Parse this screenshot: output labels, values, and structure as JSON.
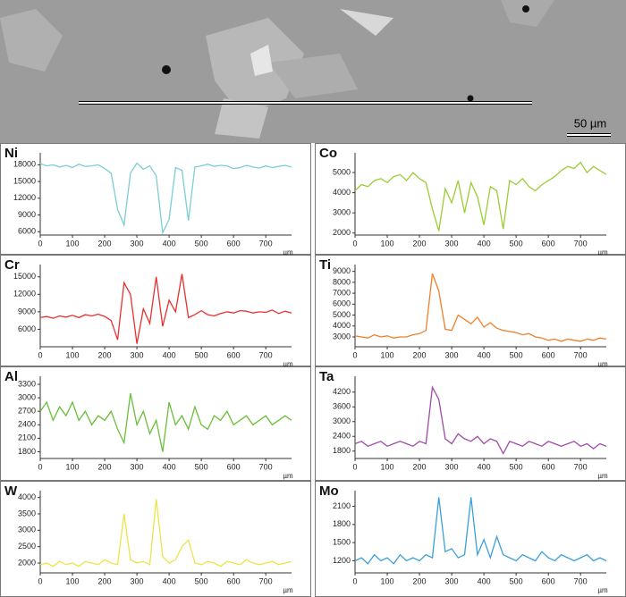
{
  "image": {
    "scale_bar": "50 µm"
  },
  "chart_data": [
    {
      "type": "line",
      "title": "Ni",
      "xlabel": "µm",
      "xlim": [
        0,
        780
      ],
      "xticks": [
        0,
        100,
        200,
        300,
        400,
        500,
        600,
        700
      ],
      "ylim": [
        5400,
        19500
      ],
      "yticks": [
        6000,
        9000,
        12000,
        15000,
        18000
      ],
      "x": [
        0,
        20,
        40,
        60,
        80,
        100,
        120,
        140,
        160,
        180,
        200,
        220,
        240,
        260,
        280,
        300,
        320,
        340,
        360,
        380,
        400,
        420,
        440,
        460,
        480,
        500,
        520,
        540,
        560,
        580,
        600,
        620,
        640,
        660,
        680,
        700,
        720,
        740,
        760,
        780
      ],
      "series": [
        {
          "name": "Ni",
          "color": "#7ccdd6",
          "values": [
            18200,
            17800,
            18000,
            17600,
            17900,
            17500,
            18100,
            17700,
            17800,
            18000,
            17300,
            16500,
            10000,
            7200,
            16500,
            18300,
            17200,
            17800,
            16000,
            5800,
            8200,
            17500,
            17000,
            8000,
            17600,
            17800,
            18100,
            17700,
            17900,
            17800,
            17300,
            17500,
            17900,
            17600,
            17400,
            17800,
            17500,
            17700,
            17900,
            17600
          ]
        }
      ]
    },
    {
      "type": "line",
      "title": "Co",
      "xlabel": "µm",
      "xlim": [
        0,
        780
      ],
      "xticks": [
        0,
        100,
        200,
        300,
        400,
        500,
        600,
        700
      ],
      "ylim": [
        1900,
        5800
      ],
      "yticks": [
        2000,
        3000,
        4000,
        5000
      ],
      "x": [
        0,
        20,
        40,
        60,
        80,
        100,
        120,
        140,
        160,
        180,
        200,
        220,
        240,
        260,
        280,
        300,
        320,
        340,
        360,
        380,
        400,
        420,
        440,
        460,
        480,
        500,
        520,
        540,
        560,
        580,
        600,
        620,
        640,
        660,
        680,
        700,
        720,
        740,
        760,
        780
      ],
      "series": [
        {
          "name": "Co",
          "color": "#9acd32",
          "values": [
            4100,
            4400,
            4300,
            4600,
            4700,
            4500,
            4800,
            4900,
            4600,
            5000,
            4700,
            4500,
            3200,
            2100,
            4200,
            3500,
            4600,
            3000,
            4500,
            3800,
            2400,
            4300,
            4100,
            2200,
            4600,
            4400,
            4700,
            4300,
            4100,
            4400,
            4600,
            4800,
            5100,
            5300,
            5200,
            5500,
            5000,
            5300,
            5100,
            4900
          ]
        }
      ]
    },
    {
      "type": "line",
      "title": "Cr",
      "xlabel": "µm",
      "xlim": [
        0,
        780
      ],
      "xticks": [
        0,
        100,
        200,
        300,
        400,
        500,
        600,
        700
      ],
      "ylim": [
        3000,
        16500
      ],
      "yticks": [
        6000,
        9000,
        12000,
        15000
      ],
      "x": [
        0,
        20,
        40,
        60,
        80,
        100,
        120,
        140,
        160,
        180,
        200,
        220,
        240,
        260,
        280,
        300,
        320,
        340,
        360,
        380,
        400,
        420,
        440,
        460,
        480,
        500,
        520,
        540,
        560,
        580,
        600,
        620,
        640,
        660,
        680,
        700,
        720,
        740,
        760,
        780
      ],
      "series": [
        {
          "name": "Cr",
          "color": "#e8312e",
          "values": [
            8000,
            8200,
            7900,
            8300,
            8100,
            8400,
            8000,
            8500,
            8300,
            8600,
            8200,
            7500,
            4200,
            14000,
            12000,
            3500,
            9500,
            7000,
            15000,
            6500,
            11000,
            9000,
            15500,
            8000,
            8500,
            9200,
            8500,
            8300,
            8700,
            9000,
            8800,
            9200,
            9100,
            8800,
            9000,
            8900,
            9300,
            8700,
            9100,
            8800
          ]
        }
      ]
    },
    {
      "type": "line",
      "title": "Ti",
      "xlabel": "µm",
      "xlim": [
        0,
        780
      ],
      "xticks": [
        0,
        100,
        200,
        300,
        400,
        500,
        600,
        700
      ],
      "ylim": [
        2100,
        9300
      ],
      "yticks": [
        3000,
        4000,
        5000,
        6000,
        7000,
        8000,
        9000
      ],
      "x": [
        0,
        20,
        40,
        60,
        80,
        100,
        120,
        140,
        160,
        180,
        200,
        220,
        240,
        260,
        280,
        300,
        320,
        340,
        360,
        380,
        400,
        420,
        440,
        460,
        480,
        500,
        520,
        540,
        560,
        580,
        600,
        620,
        640,
        660,
        680,
        700,
        720,
        740,
        760,
        780
      ],
      "series": [
        {
          "name": "Ti",
          "color": "#f07f2a",
          "values": [
            3100,
            3000,
            2900,
            3200,
            3000,
            3100,
            2900,
            3000,
            3000,
            3200,
            3300,
            3600,
            8800,
            7200,
            3700,
            3600,
            5000,
            4600,
            4200,
            4800,
            3900,
            4300,
            3800,
            3600,
            3500,
            3400,
            3200,
            3300,
            3000,
            2900,
            2700,
            2800,
            2600,
            2800,
            2700,
            2600,
            2800,
            2700,
            2900,
            2800
          ]
        }
      ]
    },
    {
      "type": "line",
      "title": "Al",
      "xlabel": "µm",
      "xlim": [
        0,
        780
      ],
      "xticks": [
        0,
        100,
        200,
        300,
        400,
        500,
        600,
        700
      ],
      "ylim": [
        1650,
        3400
      ],
      "yticks": [
        1800,
        2100,
        2400,
        2700,
        3000,
        3300
      ],
      "x": [
        0,
        20,
        40,
        60,
        80,
        100,
        120,
        140,
        160,
        180,
        200,
        220,
        240,
        260,
        280,
        300,
        320,
        340,
        360,
        380,
        400,
        420,
        440,
        460,
        480,
        500,
        520,
        540,
        560,
        580,
        600,
        620,
        640,
        660,
        680,
        700,
        720,
        740,
        760,
        780
      ],
      "series": [
        {
          "name": "Al",
          "color": "#6abf3a",
          "values": [
            2700,
            2900,
            2500,
            2800,
            2600,
            2900,
            2500,
            2700,
            2400,
            2600,
            2500,
            2700,
            2300,
            2000,
            3100,
            2400,
            2700,
            2200,
            2500,
            1800,
            2900,
            2400,
            2600,
            2300,
            2800,
            2400,
            2300,
            2600,
            2500,
            2700,
            2400,
            2500,
            2600,
            2400,
            2500,
            2600,
            2400,
            2500,
            2600,
            2500
          ]
        }
      ]
    },
    {
      "type": "line",
      "title": "Ta",
      "xlabel": "µm",
      "xlim": [
        0,
        780
      ],
      "xticks": [
        0,
        100,
        200,
        300,
        400,
        500,
        600,
        700
      ],
      "ylim": [
        1500,
        4700
      ],
      "yticks": [
        1800,
        2400,
        3000,
        3600,
        4200
      ],
      "x": [
        0,
        20,
        40,
        60,
        80,
        100,
        120,
        140,
        160,
        180,
        200,
        220,
        240,
        260,
        280,
        300,
        320,
        340,
        360,
        380,
        400,
        420,
        440,
        460,
        480,
        500,
        520,
        540,
        560,
        580,
        600,
        620,
        640,
        660,
        680,
        700,
        720,
        740,
        760,
        780
      ],
      "series": [
        {
          "name": "Ta",
          "color": "#a04aa8",
          "values": [
            2100,
            2200,
            2000,
            2100,
            2200,
            2000,
            2100,
            2200,
            2100,
            2000,
            2200,
            2100,
            4400,
            3900,
            2300,
            2100,
            2500,
            2300,
            2200,
            2400,
            2100,
            2300,
            2200,
            1700,
            2200,
            2100,
            2000,
            2200,
            2100,
            2000,
            2200,
            2100,
            2000,
            2100,
            2200,
            2000,
            2100,
            1900,
            2100,
            2000
          ]
        }
      ]
    },
    {
      "type": "line",
      "title": "W",
      "xlabel": "µm",
      "xlim": [
        0,
        780
      ],
      "xticks": [
        0,
        100,
        200,
        300,
        400,
        500,
        600,
        700
      ],
      "ylim": [
        1700,
        4100
      ],
      "yticks": [
        2000,
        2500,
        3000,
        3500,
        4000
      ],
      "x": [
        0,
        20,
        40,
        60,
        80,
        100,
        120,
        140,
        160,
        180,
        200,
        220,
        240,
        260,
        280,
        300,
        320,
        340,
        360,
        380,
        400,
        420,
        440,
        460,
        480,
        500,
        520,
        540,
        560,
        580,
        600,
        620,
        640,
        660,
        680,
        700,
        720,
        740,
        760,
        780
      ],
      "series": [
        {
          "name": "W",
          "color": "#ece44a",
          "values": [
            1950,
            2000,
            1900,
            2050,
            1950,
            2000,
            1900,
            2050,
            2000,
            1950,
            2100,
            2000,
            1950,
            3500,
            2100,
            2000,
            2050,
            1950,
            3950,
            2200,
            2000,
            2100,
            2500,
            2700,
            2000,
            1950,
            2050,
            2000,
            1900,
            2050,
            2000,
            1950,
            2100,
            2000,
            1950,
            2000,
            2050,
            1950,
            2000,
            2050
          ]
        }
      ]
    },
    {
      "type": "line",
      "title": "Mo",
      "xlabel": "µm",
      "xlim": [
        0,
        780
      ],
      "xticks": [
        0,
        100,
        200,
        300,
        400,
        500,
        600,
        700
      ],
      "ylim": [
        1000,
        2300
      ],
      "yticks": [
        1200,
        1500,
        1800,
        2100
      ],
      "x": [
        0,
        20,
        40,
        60,
        80,
        100,
        120,
        140,
        160,
        180,
        200,
        220,
        240,
        260,
        280,
        300,
        320,
        340,
        360,
        380,
        400,
        420,
        440,
        460,
        480,
        500,
        520,
        540,
        560,
        580,
        600,
        620,
        640,
        660,
        680,
        700,
        720,
        740,
        760,
        780
      ],
      "series": [
        {
          "name": "Mo",
          "color": "#3aa0d8",
          "values": [
            1200,
            1250,
            1150,
            1300,
            1200,
            1250,
            1150,
            1300,
            1200,
            1250,
            1200,
            1300,
            1250,
            2250,
            1350,
            1400,
            1250,
            1300,
            2250,
            1300,
            1550,
            1250,
            1600,
            1300,
            1250,
            1200,
            1300,
            1250,
            1200,
            1350,
            1250,
            1200,
            1300,
            1250,
            1200,
            1250,
            1300,
            1200,
            1250,
            1200
          ]
        }
      ]
    }
  ]
}
